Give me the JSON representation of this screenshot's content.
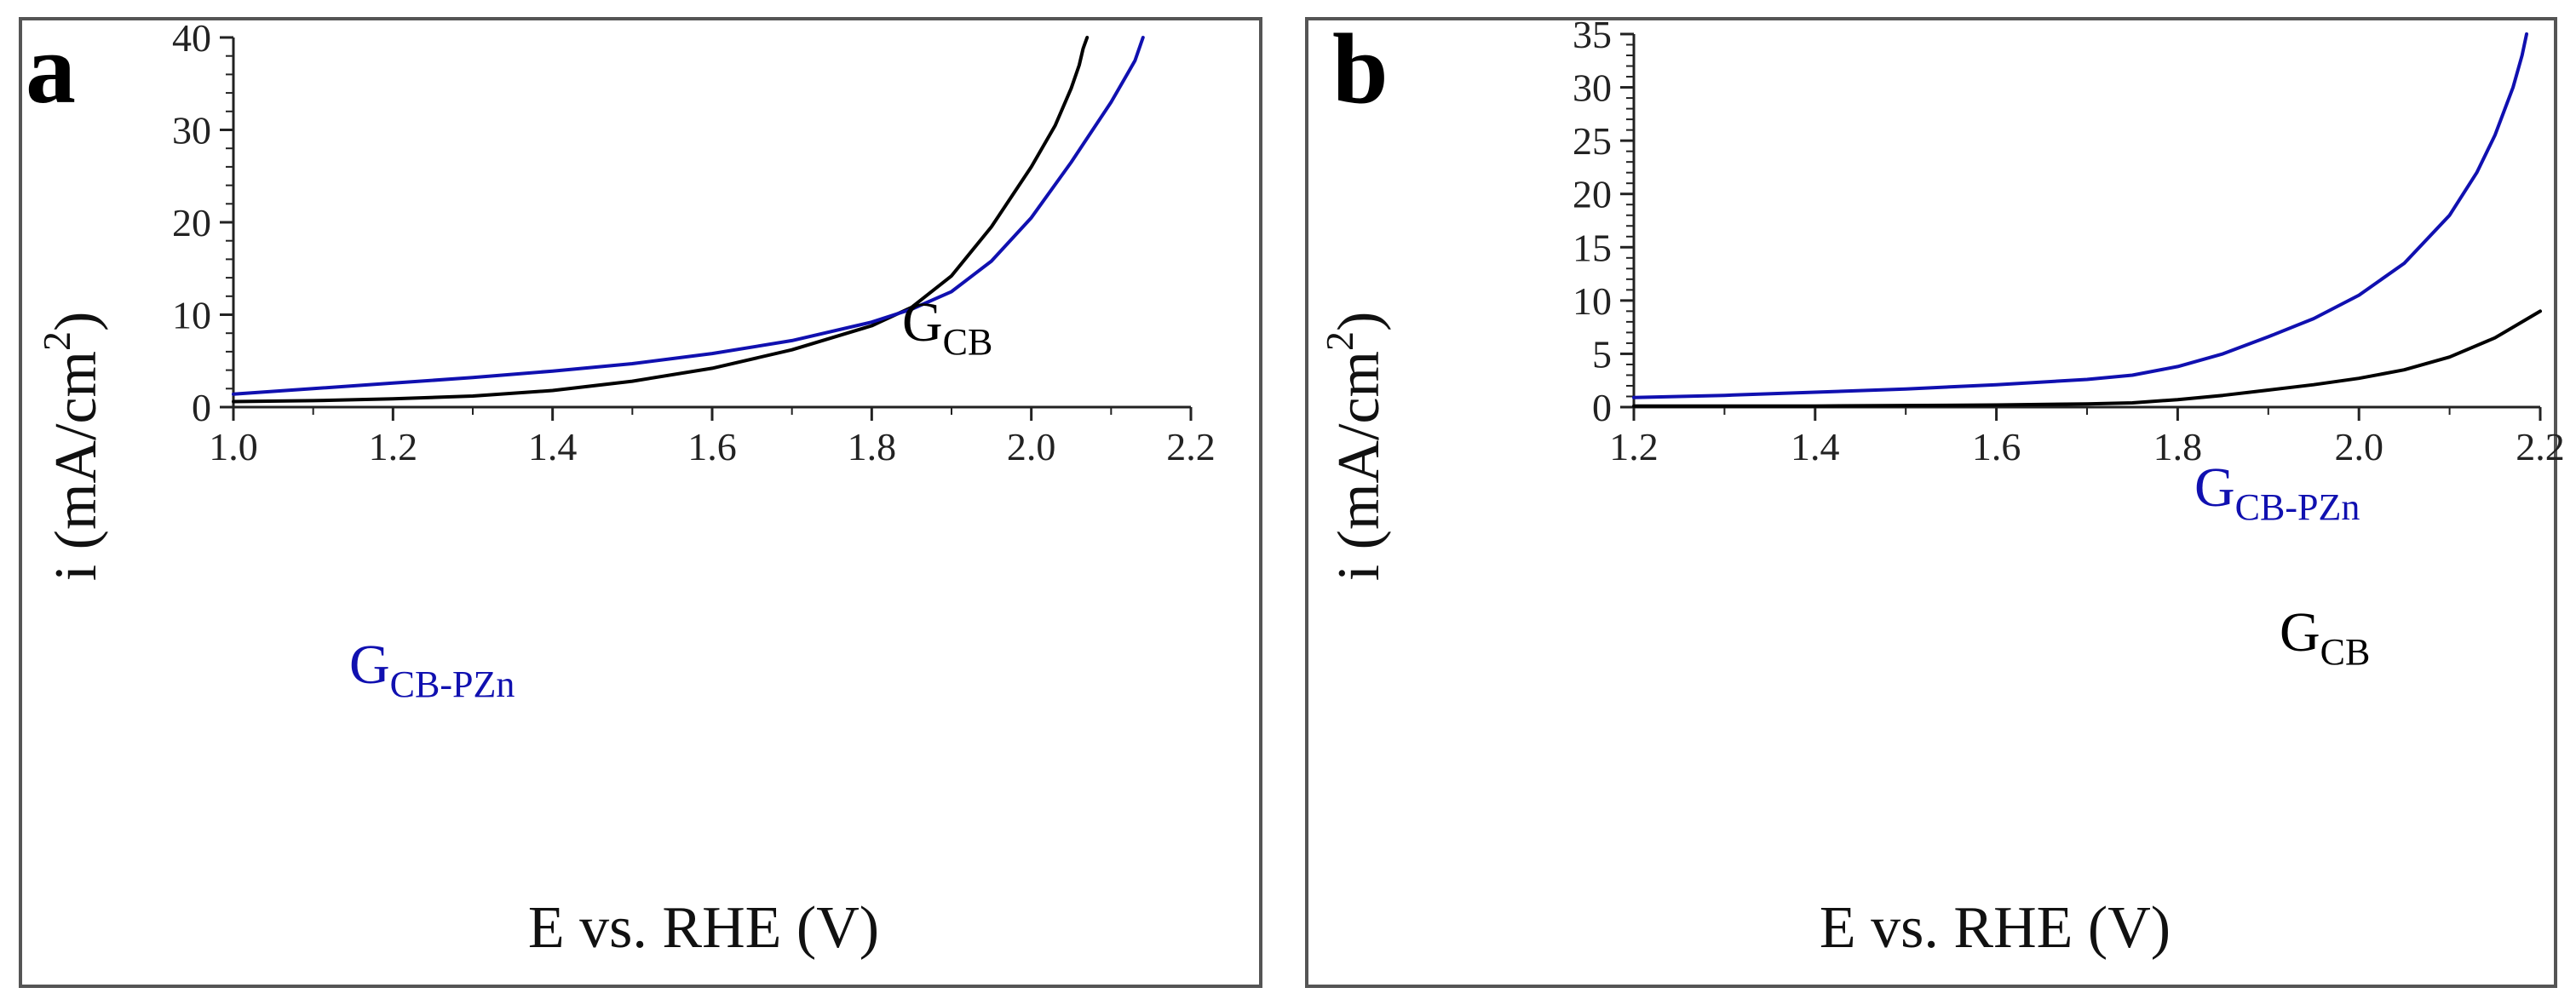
{
  "colors": {
    "black_series": "#000000",
    "blue_series": "#1010b0",
    "axis": "#222222"
  },
  "chart_data": [
    {
      "panel": "a",
      "type": "line",
      "xlabel": "E vs. RHE (V)",
      "ylabel_main": "i (mA/cm",
      "ylabel_sup": "2",
      "ylabel_close": ")",
      "xlim": [
        1.0,
        2.2
      ],
      "ylim": [
        0,
        40
      ],
      "xticks": [
        "1.0",
        "1.2",
        "1.4",
        "1.6",
        "1.8",
        "2.0",
        "2.2"
      ],
      "yticks": [
        "0",
        "10",
        "20",
        "30",
        "40"
      ],
      "grid": false,
      "series": [
        {
          "name": "GCB",
          "label_main": "G",
          "label_sub": "CB",
          "color": "#000000",
          "x": [
            1.0,
            1.1,
            1.2,
            1.3,
            1.4,
            1.5,
            1.6,
            1.7,
            1.8,
            1.85,
            1.9,
            1.95,
            2.0,
            2.03,
            2.05,
            2.06,
            2.065,
            2.07
          ],
          "y": [
            0.6,
            0.7,
            0.9,
            1.2,
            1.8,
            2.8,
            4.2,
            6.2,
            8.8,
            10.8,
            14.2,
            19.5,
            26.0,
            30.5,
            34.5,
            37.0,
            38.8,
            40.0
          ]
        },
        {
          "name": "GCB-PZn",
          "label_main": "G",
          "label_sub": "CB-PZn",
          "color": "#1010b0",
          "x": [
            1.0,
            1.1,
            1.2,
            1.3,
            1.4,
            1.5,
            1.6,
            1.7,
            1.8,
            1.85,
            1.9,
            1.95,
            2.0,
            2.05,
            2.1,
            2.12,
            2.13,
            2.14
          ],
          "y": [
            1.4,
            2.0,
            2.6,
            3.2,
            3.9,
            4.7,
            5.8,
            7.2,
            9.2,
            10.6,
            12.5,
            15.8,
            20.5,
            26.5,
            33.0,
            36.0,
            37.5,
            40.0
          ]
        }
      ]
    },
    {
      "panel": "b",
      "type": "line",
      "xlabel": "E vs. RHE (V)",
      "ylabel_main": "i (mA/cm",
      "ylabel_sup": "2",
      "ylabel_close": ")",
      "xlim": [
        1.2,
        2.2
      ],
      "ylim": [
        0,
        35
      ],
      "xticks": [
        "1.2",
        "1.4",
        "1.6",
        "1.8",
        "2.0",
        "2.2"
      ],
      "yticks": [
        "0",
        "5",
        "10",
        "15",
        "20",
        "25",
        "30",
        "35"
      ],
      "grid": false,
      "series": [
        {
          "name": "GCB-PZn",
          "label_main": "G",
          "label_sub": "CB-PZn",
          "color": "#1010b0",
          "x": [
            1.2,
            1.3,
            1.4,
            1.5,
            1.6,
            1.7,
            1.75,
            1.8,
            1.85,
            1.9,
            1.95,
            2.0,
            2.05,
            2.1,
            2.13,
            2.15,
            2.17,
            2.18,
            2.185
          ],
          "y": [
            0.9,
            1.1,
            1.4,
            1.7,
            2.1,
            2.6,
            3.0,
            3.8,
            5.0,
            6.6,
            8.3,
            10.5,
            13.5,
            18.0,
            22.0,
            25.5,
            30.0,
            33.0,
            35.0
          ]
        },
        {
          "name": "GCB",
          "label_main": "G",
          "label_sub": "CB",
          "color": "#000000",
          "x": [
            1.2,
            1.4,
            1.6,
            1.7,
            1.75,
            1.8,
            1.85,
            1.9,
            1.95,
            2.0,
            2.05,
            2.1,
            2.15,
            2.2
          ],
          "y": [
            0.1,
            0.1,
            0.2,
            0.3,
            0.4,
            0.7,
            1.1,
            1.6,
            2.1,
            2.7,
            3.5,
            4.7,
            6.5,
            9.0
          ]
        }
      ]
    }
  ],
  "panels": {
    "a": {
      "letter": "a"
    },
    "b": {
      "letter": "b"
    }
  }
}
